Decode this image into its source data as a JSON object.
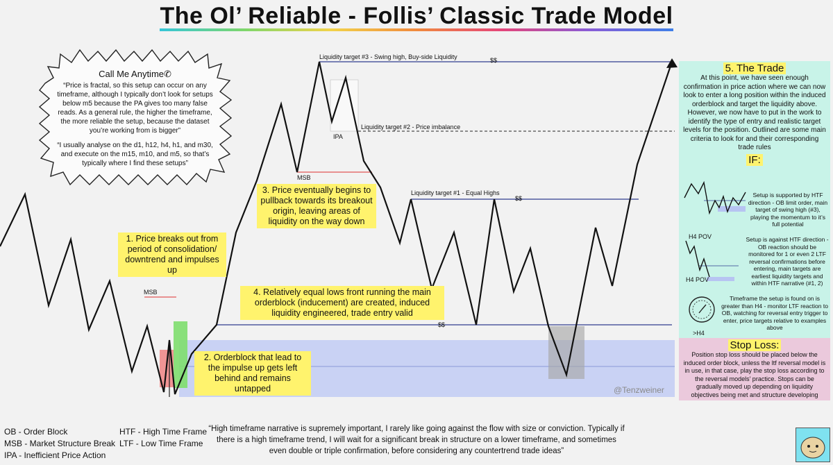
{
  "title": "The Ol’ Reliable - Follis’ Classic Trade Model",
  "cloud": {
    "heading": "Call Me Anytime",
    "phone_icon": "phone-icon",
    "p1": "“Price is fractal, so this setup can occur on any timeframe, although I typically don’t look for setups below m5 because the PA gives too many false reads. As a general rule, the higher the timeframe, the more reliable the setup, because the dataset you’re working from is bigger”",
    "p2": "“I usually analyse on the d1, h12, h4, h1, and m30, and execute on the m15, m10, and m5, so that’s typically where I find these setups”"
  },
  "labels": {
    "lt3": "Liquidity target #3 - Swing high, Buy-side Liquidity",
    "lt2": "Liquidity target #2 - Price imbalance",
    "lt1": "Liquidity target #1 - Equal Highs",
    "ipa": "IPA",
    "msb_top": "MSB",
    "msb_low": "MSB",
    "dollars": "$$"
  },
  "notes": {
    "n1": "1. Price breaks out from period of consolidation/ downtrend and impulses up",
    "n2": "2. Orderblock that lead to the impulse up gets left behind and remains untapped",
    "n3": "3. Price eventually begins to pullback towards its breakout origin, leaving areas of liquidity on the way down",
    "n4": "4. Relatively equal lows front running the main orderblock (inducement) are created, induced liquidity engineered, trade entry valid"
  },
  "watermark": "@Tenzweiner",
  "trade": {
    "title": "5. The Trade",
    "text": "At this point, we have seen enough confirmation in price action where we can now look to enter a long position within the induced orderblock and target the liquidity above. However, we now have to put in the work to identify the type of entry and realistic target levels for the position. Outlined are some main criteria to look for and their corresponding trade rules",
    "if_title": "IF:",
    "cond1": "Setup is supported by HTF direction - OB limit order, main target of swing high (#3), playing the momentum to it’s full potential",
    "cond2": "Setup is against HTF direction - OB reaction should be monitored for 1 or even 2 LTF reversal confirmations before entering, main targets are earliest liquidity targets and within HTF narrative (#1, 2)",
    "cond3": "Timeframe the setup is found on is greater than H4 - monitor LTF reaction to OB, watching for reversal entry trigger to enter, price targets relative to examples above",
    "pov1": "H4 POV",
    "pov2": "H4 POV",
    "clock_label": ">H4"
  },
  "stoploss": {
    "title": "Stop Loss:",
    "text": "Position stop loss should be placed below the induced order block, unless the ltf reversal model is in use, in that case, play the stop loss according to the reversal models’ practice. Stops can be gradually moved up depending on liquidity objectives being met and structure developing"
  },
  "legend": {
    "ob": "OB - Order Block",
    "msb": "MSB - Market Structure Break",
    "ipa": "IPA - Inefficient Price Action",
    "htf": "HTF - High Time Frame",
    "ltf": "LTF - Low Time Frame"
  },
  "quote": "“High timeframe narrative is supremely important, I rarely like going against the flow with size or conviction. Typically if there is a high timeframe trend, I will wait for a significant break in structure on a lower timeframe, and sometimes even double or triple confirmation, before considering any countertrend trade ideas”",
  "colors": {
    "note_yellow": "#fff36d",
    "trade_panel": "#c8f3e8",
    "stop_panel": "#ebc9dc",
    "orderblock_zone": "#c2cdf5",
    "liquidity_line": "#2f3d8f",
    "msb_line": "#e25555"
  }
}
